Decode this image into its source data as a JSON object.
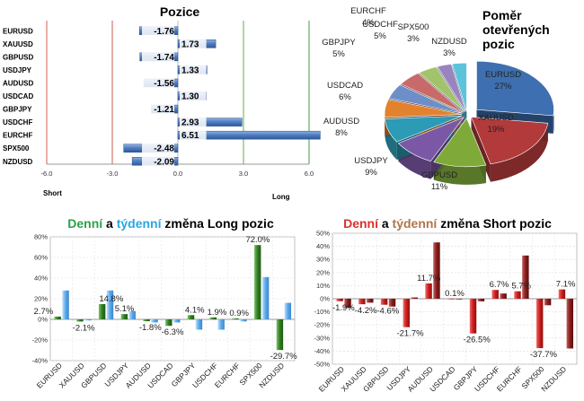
{
  "chart_data": [
    {
      "type": "bar",
      "orientation": "horizontal",
      "title": "Pozice",
      "categories": [
        "EURUSD",
        "XAUUSD",
        "GBPUSD",
        "USDJPY",
        "AUDUSD",
        "USDCAD",
        "GBPJPY",
        "USDCHF",
        "EURCHF",
        "SPX500",
        "NZDUSD"
      ],
      "values": [
        -1.76,
        1.73,
        -1.74,
        1.33,
        -1.56,
        1.3,
        -1.21,
        2.93,
        6.51,
        -2.48,
        -2.09
      ],
      "value_labels": [
        "-1.76",
        "1.73",
        "-1.74",
        "1.33",
        "-1.56",
        "1.30",
        "-1.21",
        "2.93",
        "6.51",
        "-2.48",
        "-2.09"
      ],
      "xlim": [
        -6,
        6
      ],
      "xticks": [
        "-6.0",
        "-3.0",
        "0.0",
        "3.0",
        "6.0"
      ],
      "xticks_values": [
        -6,
        -3,
        0,
        3,
        6
      ],
      "left_label": "Short",
      "right_label": "Long",
      "colors": {
        "bar": "#4f7fc1",
        "short_line": "#c9594f",
        "long_line": "#5fae4e"
      }
    },
    {
      "type": "pie",
      "title_lines": [
        "Poměr",
        "otevřených",
        "pozic"
      ],
      "slices": [
        {
          "name": "EURUSD",
          "value": 27,
          "label": "EURUSD\n27%",
          "color": "#3e6fb0"
        },
        {
          "name": "XAUUSD",
          "value": 19,
          "label": "XAUUSD\n19%",
          "color": "#b23a3a"
        },
        {
          "name": "GBPUSD",
          "value": 11,
          "label": "GBPUSD\n11%",
          "color": "#7faa3a"
        },
        {
          "name": "USDJPY",
          "value": 9,
          "label": "USDJPY\n9%",
          "color": "#7b58a6"
        },
        {
          "name": "AUDUSD",
          "value": 8,
          "label": "AUDUSD\n8%",
          "color": "#2c9bb5"
        },
        {
          "name": "USDCAD",
          "value": 6,
          "label": "USDCAD\n6%",
          "color": "#e3822e"
        },
        {
          "name": "GBPJPY",
          "value": 5,
          "label": "GBPJPY\n5%",
          "color": "#6d8ec8"
        },
        {
          "name": "USDCHF",
          "value": 5,
          "label": "USDCHF\n5%",
          "color": "#c86a69"
        },
        {
          "name": "EURCHF",
          "value": 4,
          "label": "EURCHF\n4%",
          "color": "#a2c36c"
        },
        {
          "name": "SPX500",
          "value": 3,
          "label": "SPX500\n3%",
          "color": "#9a84bf"
        },
        {
          "name": "NZDUSD",
          "value": 3,
          "label": "NZDUSD\n3%",
          "color": "#5cc3da"
        }
      ]
    },
    {
      "type": "bar",
      "title_parts": [
        {
          "text": "Denní",
          "color": "#2ea04a"
        },
        {
          "text": " a ",
          "color": "#000000"
        },
        {
          "text": "týdenní",
          "color": "#29a7e0"
        },
        {
          "text": " změna Long pozic",
          "color": "#000000"
        }
      ],
      "categories": [
        "EURUSD",
        "XAUUSD",
        "GBPUSD",
        "USDJPY",
        "AUDUSD",
        "USDCAD",
        "GBPJPY",
        "USDCHF",
        "EURCHF",
        "SPX500",
        "NZDUSD"
      ],
      "series": [
        {
          "values": [
            2.7,
            -2.1,
            14.8,
            5.1,
            -1.8,
            -6.3,
            4.1,
            1.9,
            0.9,
            72.0,
            -29.7
          ],
          "color": "#3b8a2e"
        },
        {
          "values": [
            28,
            -1,
            28,
            8,
            -3,
            -3,
            -10,
            -10,
            -2,
            41,
            16
          ],
          "color": "#5aa8e8"
        }
      ],
      "value_labels": [
        "2.7%",
        "-2.1%",
        "14.8%",
        "5.1%",
        "-1.8%",
        "-6.3%",
        "4.1%",
        "1.9%",
        "0.9%",
        "72.0%",
        "-29.7%"
      ],
      "ylim": [
        -40,
        80
      ],
      "yticks": [
        "80%",
        "60%",
        "40%",
        "20%",
        "0%",
        "-20%",
        "-40%"
      ],
      "yticks_values": [
        80,
        60,
        40,
        20,
        0,
        -20,
        -40
      ]
    },
    {
      "type": "bar",
      "title_parts": [
        {
          "text": "Denní",
          "color": "#d9322b"
        },
        {
          "text": " a ",
          "color": "#000000"
        },
        {
          "text": "týdenní",
          "color": "#b0744a"
        },
        {
          "text": " změna Short pozic",
          "color": "#000000"
        }
      ],
      "categories": [
        "EURUSD",
        "XAUUSD",
        "GBPUSD",
        "USDJPY",
        "AUDUSD",
        "USDCAD",
        "GBPJPY",
        "USDCHF",
        "EURCHF",
        "SPX500",
        "NZDUSD"
      ],
      "series": [
        {
          "values": [
            -1.9,
            -4.2,
            -4.6,
            -21.7,
            11.7,
            0.1,
            -26.5,
            6.7,
            5.7,
            -37.7,
            7.1
          ],
          "color": "#cc1d1d"
        },
        {
          "values": [
            -7,
            -3,
            -6,
            1,
            43,
            0,
            -2,
            4,
            33,
            -5,
            -38
          ],
          "color": "#8a1c1c"
        }
      ],
      "value_labels": [
        "-1.9%",
        "-4.2%",
        "-4.6%",
        "-21.7%",
        "11.7%",
        "0.1%",
        "-26.5%",
        "6.7%",
        "5.7%",
        "-37.7%",
        "7.1%"
      ],
      "ylim": [
        -50,
        50
      ],
      "yticks": [
        "50%",
        "40%",
        "30%",
        "20%",
        "10%",
        "0%",
        "-10%",
        "-20%",
        "-30%",
        "-40%",
        "-50%"
      ],
      "yticks_values": [
        50,
        40,
        30,
        20,
        10,
        0,
        -10,
        -20,
        -30,
        -40,
        -50
      ]
    }
  ]
}
